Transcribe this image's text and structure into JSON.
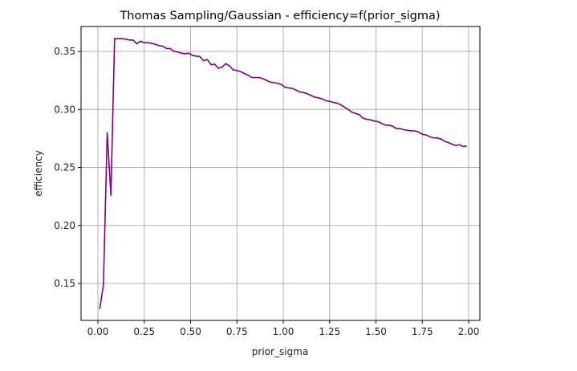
{
  "chart_data": {
    "type": "line",
    "title": "Thomas Sampling/Gaussian - efficiency=f(prior_sigma)",
    "xlabel": "prior_sigma",
    "ylabel": "efficiency",
    "xlim": [
      -0.09,
      2.06
    ],
    "ylim": [
      0.116,
      0.372
    ],
    "xticks": [
      "0.00",
      "0.25",
      "0.50",
      "0.75",
      "1.00",
      "1.25",
      "1.50",
      "1.75",
      "2.00"
    ],
    "yticks": [
      "0.15",
      "0.20",
      "0.25",
      "0.30",
      "0.35"
    ],
    "grid": true,
    "legend": null,
    "series": [
      {
        "name": "efficiency",
        "color": "#800080",
        "x": [
          0.01,
          0.03,
          0.05,
          0.07,
          0.09,
          0.11,
          0.13,
          0.15,
          0.17,
          0.19,
          0.21,
          0.23,
          0.25,
          0.27,
          0.29,
          0.31,
          0.33,
          0.35,
          0.37,
          0.39,
          0.41,
          0.43,
          0.45,
          0.47,
          0.49,
          0.51,
          0.53,
          0.55,
          0.57,
          0.59,
          0.61,
          0.63,
          0.65,
          0.67,
          0.69,
          0.71,
          0.73,
          0.75,
          0.77,
          0.79,
          0.81,
          0.83,
          0.85,
          0.87,
          0.89,
          0.91,
          0.93,
          0.95,
          0.97,
          0.99,
          1.01,
          1.03,
          1.05,
          1.07,
          1.09,
          1.11,
          1.13,
          1.15,
          1.17,
          1.19,
          1.21,
          1.23,
          1.25,
          1.27,
          1.29,
          1.31,
          1.33,
          1.35,
          1.37,
          1.39,
          1.41,
          1.43,
          1.45,
          1.47,
          1.49,
          1.51,
          1.53,
          1.55,
          1.57,
          1.59,
          1.61,
          1.63,
          1.65,
          1.67,
          1.69,
          1.71,
          1.73,
          1.75,
          1.77,
          1.79,
          1.81,
          1.83,
          1.85,
          1.87,
          1.89,
          1.91,
          1.93,
          1.95,
          1.97,
          1.99
        ],
        "y": [
          0.128,
          0.149,
          0.28,
          0.226,
          0.361,
          0.361,
          0.361,
          0.3605,
          0.3598,
          0.3598,
          0.3565,
          0.3588,
          0.3575,
          0.3575,
          0.357,
          0.356,
          0.355,
          0.3545,
          0.3525,
          0.3525,
          0.35,
          0.3495,
          0.3485,
          0.348,
          0.3485,
          0.3465,
          0.346,
          0.3455,
          0.342,
          0.343,
          0.3385,
          0.339,
          0.3355,
          0.3365,
          0.3395,
          0.3375,
          0.334,
          0.3335,
          0.3325,
          0.331,
          0.3295,
          0.3275,
          0.3275,
          0.3275,
          0.3265,
          0.325,
          0.3235,
          0.323,
          0.3225,
          0.3215,
          0.319,
          0.3185,
          0.318,
          0.3165,
          0.315,
          0.3145,
          0.3135,
          0.312,
          0.3105,
          0.31,
          0.309,
          0.3075,
          0.307,
          0.306,
          0.3055,
          0.304,
          0.302,
          0.3,
          0.2975,
          0.2965,
          0.2955,
          0.2925,
          0.2915,
          0.291,
          0.29,
          0.2895,
          0.288,
          0.2865,
          0.2865,
          0.2855,
          0.2835,
          0.2835,
          0.2825,
          0.282,
          0.2815,
          0.2815,
          0.2805,
          0.2785,
          0.278,
          0.2765,
          0.2755,
          0.2755,
          0.2745,
          0.2725,
          0.2715,
          0.27,
          0.269,
          0.2695,
          0.268,
          0.2685
        ]
      }
    ]
  }
}
